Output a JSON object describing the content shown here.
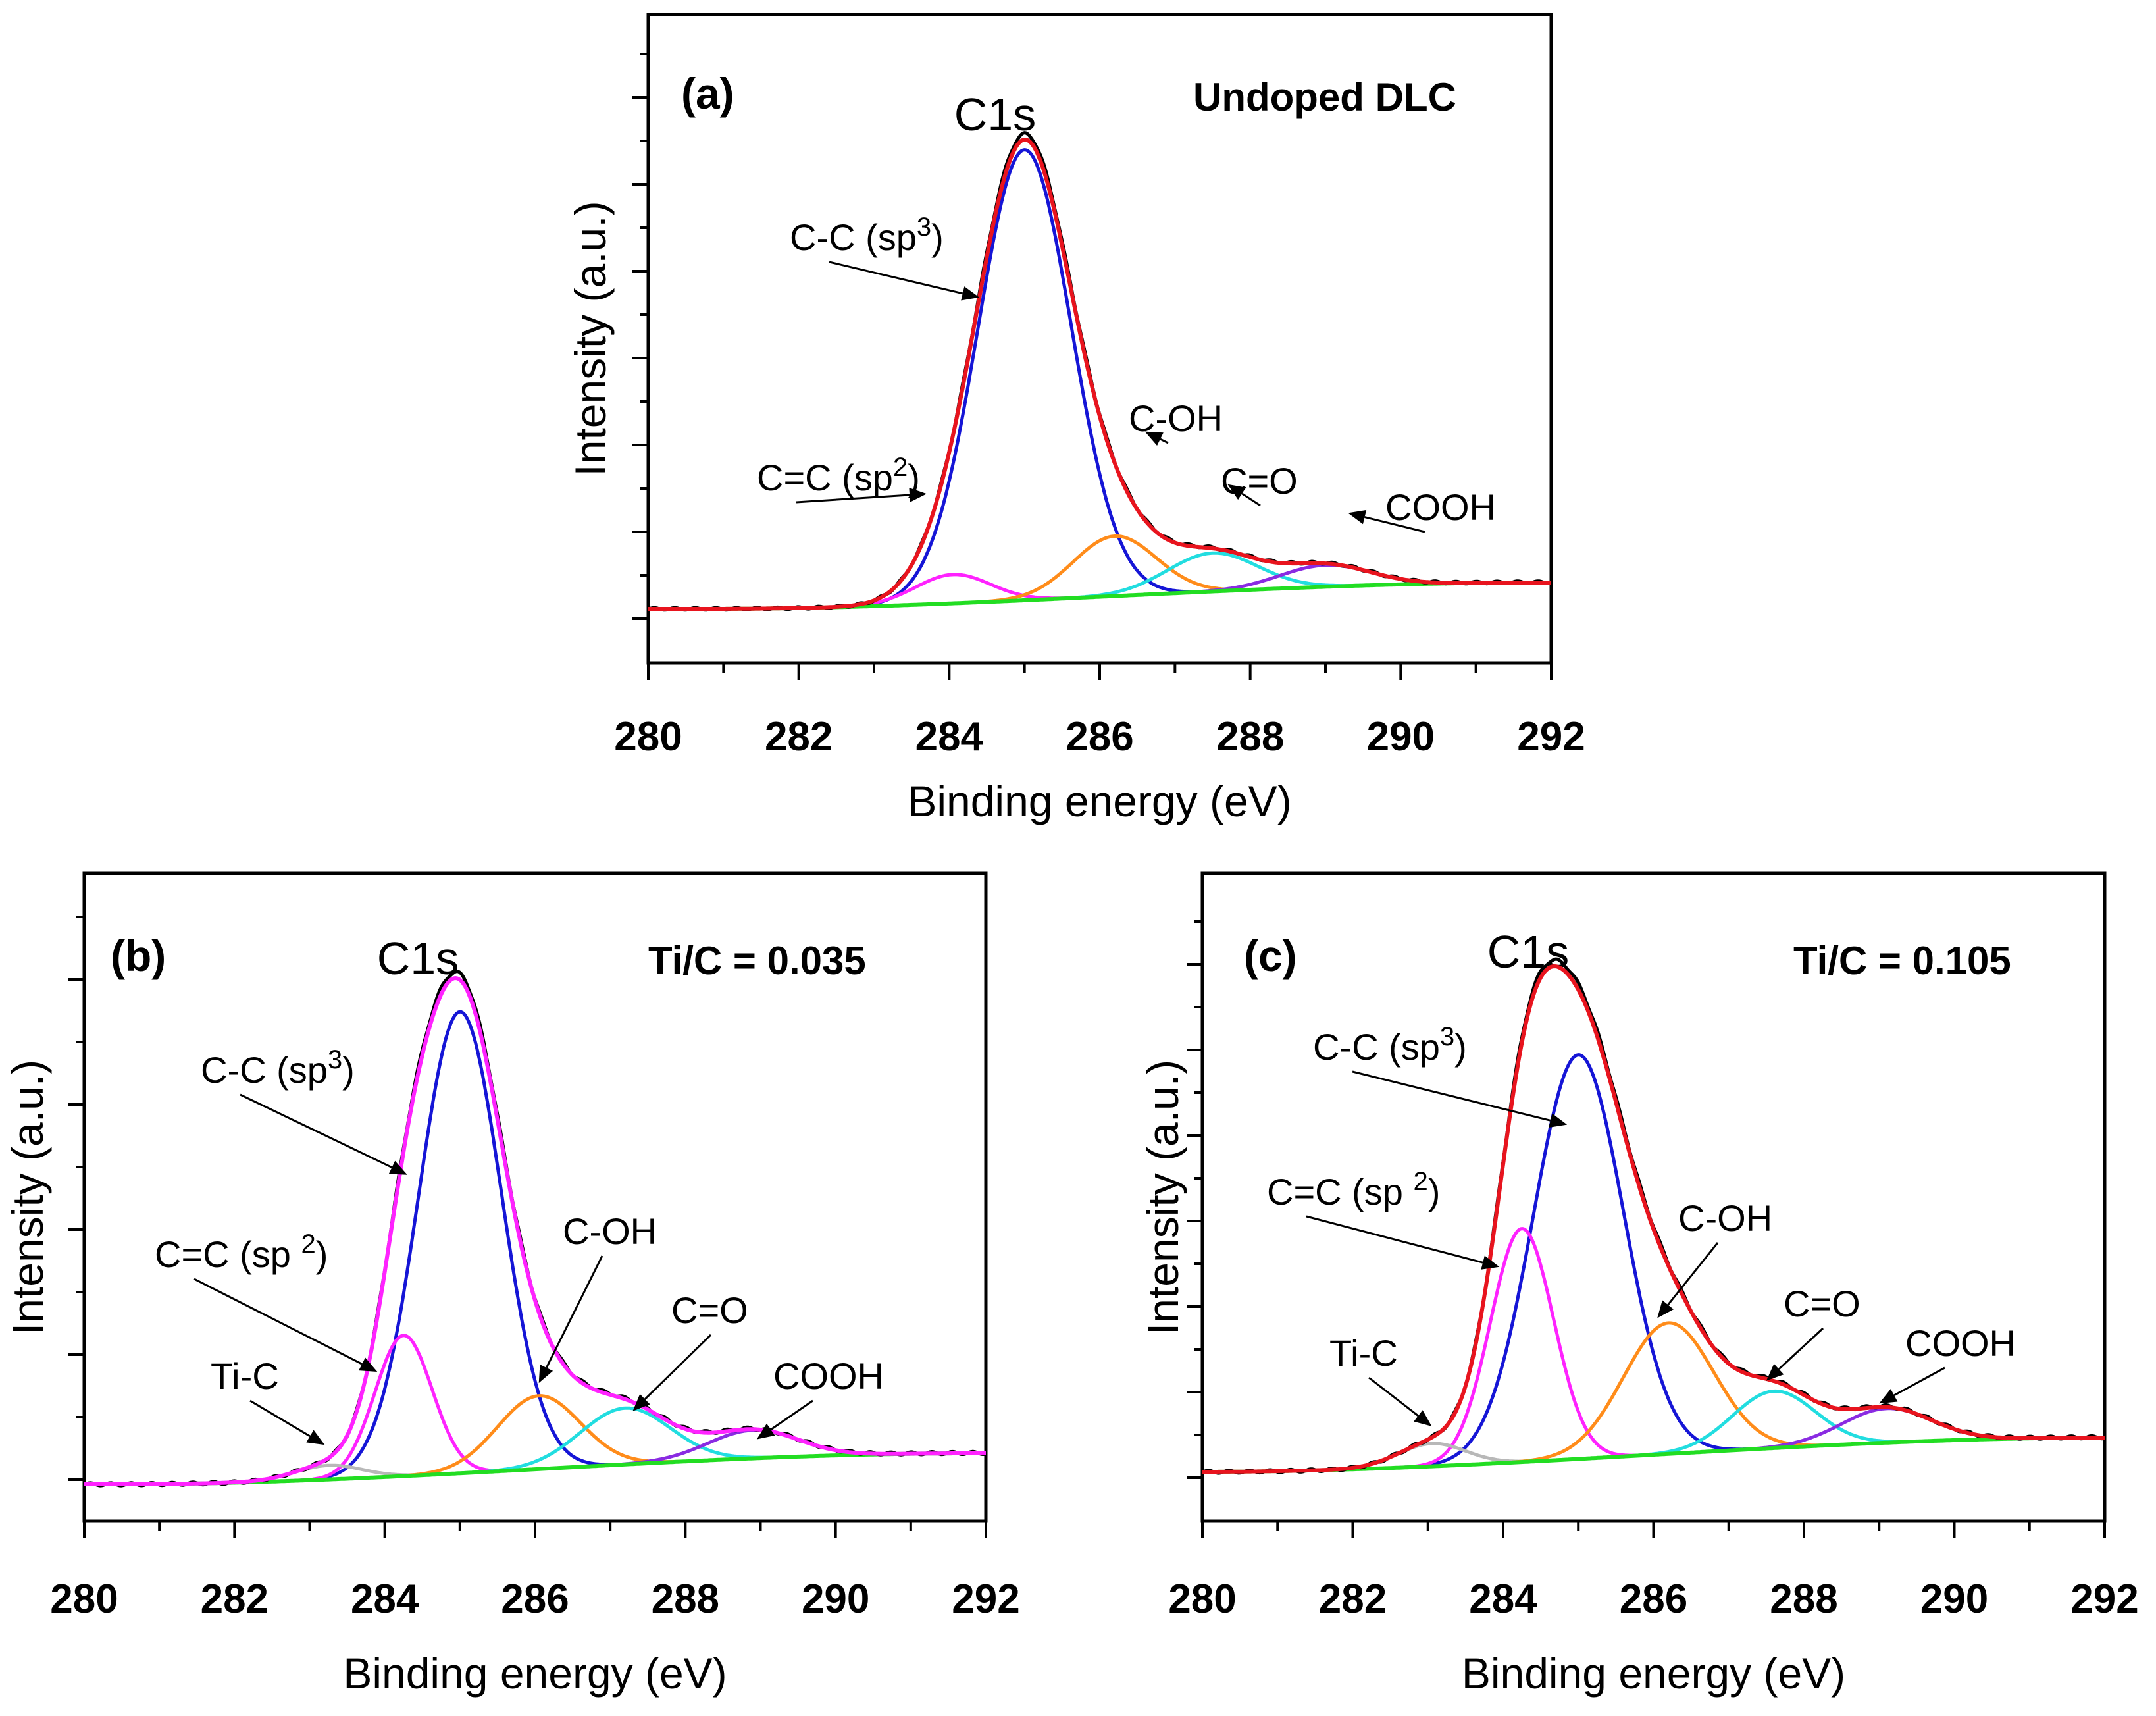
{
  "chart_data": [
    {
      "type": "line",
      "panel_label": "(a)",
      "sample_label": "Undoped DLC",
      "peak_title": "C1s",
      "xlabel": "Binding energy (eV)",
      "ylabel": "Intensity (a.u.)",
      "xlim": [
        280,
        292
      ],
      "ylim": [
        0,
        100
      ],
      "x_ticks": [
        280,
        282,
        284,
        286,
        288,
        290,
        292
      ],
      "x_tick_labels": [
        "280",
        "282",
        "284",
        "286",
        "288",
        "290",
        "292"
      ],
      "background": {
        "start": 280.8,
        "end": 291.8,
        "low": 0.0,
        "high": 5.5
      },
      "components": [
        {
          "name": "C-C (sp3)",
          "center": 285.0,
          "height": 94,
          "width": 0.62,
          "color": "#1515d6"
        },
        {
          "name": "C=C (sp2)",
          "center": 284.05,
          "height": 6,
          "width": 0.5,
          "color": "#ff22ff"
        },
        {
          "name": "C-OH",
          "center": 286.2,
          "height": 12.5,
          "width": 0.55,
          "color": "#ff8c1a"
        },
        {
          "name": "C=O",
          "center": 287.5,
          "height": 8,
          "width": 0.6,
          "color": "#22dde0"
        },
        {
          "name": "COOH",
          "center": 289.0,
          "height": 4.5,
          "width": 0.6,
          "color": "#8a2be2"
        }
      ],
      "annotations": [
        {
          "text": "C-C (sp",
          "sup": "3",
          "close": ")",
          "x": 284.4,
          "y": 65
        },
        {
          "text": "C=C (sp",
          "sup": "2",
          "close": ")",
          "x": 283.7,
          "y": 24
        },
        {
          "text": "C-OH",
          "x": 286.6,
          "y": 37
        },
        {
          "text": "C=O",
          "x": 287.7,
          "y": 26
        },
        {
          "text": "COOH",
          "x": 289.3,
          "y": 20
        }
      ],
      "envelope_color": "#e8141e",
      "raw_color": "#000000",
      "background_color": "#22dd22"
    },
    {
      "type": "line",
      "panel_label": "(b)",
      "sample_label": "Ti/C = 0.035",
      "peak_title": "C1s",
      "xlabel": "Binding energy (eV)",
      "ylabel": "Intensity (a.u.)",
      "xlim": [
        280,
        292
      ],
      "ylim": [
        0,
        100
      ],
      "x_ticks": [
        280,
        282,
        284,
        286,
        288,
        290,
        292
      ],
      "x_tick_labels": [
        "280",
        "282",
        "284",
        "286",
        "288",
        "290",
        "292"
      ],
      "background": {
        "start": 280.4,
        "end": 291.8,
        "low": 0.0,
        "high": 5.5
      },
      "components": [
        {
          "name": "C-C (sp3)",
          "center": 285.0,
          "height": 82,
          "width": 0.55,
          "color": "#1515d6"
        },
        {
          "name": "C=C (sp2)",
          "center": 284.25,
          "height": 25,
          "width": 0.38,
          "color": "#ff22ff"
        },
        {
          "name": "Ti-C",
          "center": 283.25,
          "height": 2.5,
          "width": 0.45,
          "color": "#b8b8b8"
        },
        {
          "name": "C-OH",
          "center": 286.05,
          "height": 13,
          "width": 0.55,
          "color": "#ff8c1a"
        },
        {
          "name": "C=O",
          "center": 287.2,
          "height": 10,
          "width": 0.6,
          "color": "#22dde0"
        },
        {
          "name": "COOH",
          "center": 288.9,
          "height": 5,
          "width": 0.6,
          "color": "#8a2be2"
        }
      ],
      "annotations": [
        {
          "text": "C-C (sp",
          "sup": "3",
          "close": ")",
          "x": 284.3,
          "y": 55
        },
        {
          "text": "C=C (sp ",
          "sup": "2",
          "close": ")",
          "x": 283.9,
          "y": 20
        },
        {
          "text": "Ti-C",
          "x": 283.2,
          "y": 7
        },
        {
          "text": "C-OH",
          "x": 286.05,
          "y": 18
        },
        {
          "text": "C=O",
          "x": 287.3,
          "y": 13
        },
        {
          "text": "COOH",
          "x": 288.95,
          "y": 8
        }
      ],
      "envelope_color": "#ff22ff",
      "raw_color": "#000000",
      "background_color": "#22dd22"
    },
    {
      "type": "line",
      "panel_label": "(c)",
      "sample_label": "Ti/C = 0.105",
      "peak_title": "C1s",
      "xlabel": "Binding energy (eV)",
      "ylabel": "Intensity (a.u.)",
      "xlim": [
        280,
        292
      ],
      "ylim": [
        0,
        100
      ],
      "x_ticks": [
        280,
        282,
        284,
        286,
        288,
        290,
        292
      ],
      "x_tick_labels": [
        "280",
        "282",
        "284",
        "286",
        "288",
        "290",
        "292"
      ],
      "background": {
        "start": 280.0,
        "end": 292.0,
        "low": 0.0,
        "high": 6.0
      },
      "components": [
        {
          "name": "C-C (sp3)",
          "center": 285.0,
          "height": 71,
          "width": 0.6,
          "color": "#1515d6"
        },
        {
          "name": "C=C (sp2)",
          "center": 284.25,
          "height": 41,
          "width": 0.42,
          "color": "#ff22ff"
        },
        {
          "name": "Ti-C",
          "center": 283.05,
          "height": 4,
          "width": 0.45,
          "color": "#b8b8b8"
        },
        {
          "name": "C-OH",
          "center": 286.2,
          "height": 23,
          "width": 0.6,
          "color": "#ff8c1a"
        },
        {
          "name": "C=O",
          "center": 287.6,
          "height": 10,
          "width": 0.55,
          "color": "#22dde0"
        },
        {
          "name": "COOH",
          "center": 289.1,
          "height": 6,
          "width": 0.6,
          "color": "#8a2be2"
        }
      ],
      "annotations": [
        {
          "text": "C-C (sp",
          "sup": "3",
          "close": ")",
          "x": 284.85,
          "y": 61
        },
        {
          "text": "C=C (sp ",
          "sup": "2",
          "close": ")",
          "x": 283.95,
          "y": 36
        },
        {
          "text": "Ti-C",
          "x": 283.05,
          "y": 8
        },
        {
          "text": "C-OH",
          "x": 286.05,
          "y": 27
        },
        {
          "text": "C=O",
          "x": 287.5,
          "y": 16
        },
        {
          "text": "COOH",
          "x": 289.0,
          "y": 12
        }
      ],
      "envelope_color": "#e8141e",
      "raw_color": "#000000",
      "background_color": "#22dd22"
    }
  ]
}
